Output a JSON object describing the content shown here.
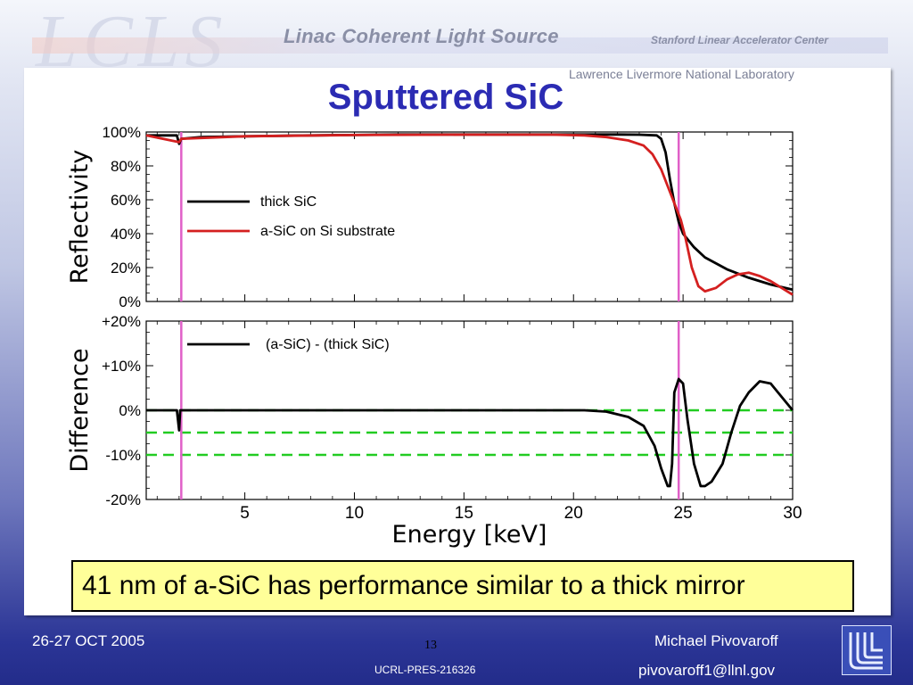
{
  "header": {
    "logo_text": "LCLS",
    "organization": "Linac Coherent Light Source",
    "center": "Stanford Linear Accelerator Center",
    "lab": "Lawrence Livermore National Laboratory"
  },
  "slide": {
    "title": "Sputtered SiC",
    "callout": "41 nm of a-SiC has performance similar to a thick mirror"
  },
  "footer": {
    "date": "26-27 OCT 2005",
    "page_number": "13",
    "report_id": "UCRL-PRES-216326",
    "author": "Michael Pivovaroff",
    "email": "pivovaroff1@llnl.gov"
  },
  "colors": {
    "title": "#2b2bb3",
    "thick_line": "#000000",
    "asic_line": "#d42020",
    "marker_lines": "#e060c8",
    "reference_dashes": "#22cc22",
    "callout_bg": "#ffff99"
  },
  "chart_data": [
    {
      "type": "line",
      "ylabel": "Reflectivity",
      "xlim": [
        0.5,
        30
      ],
      "ylim": [
        0,
        100
      ],
      "yticks": [
        "0%",
        "20%",
        "40%",
        "60%",
        "80%",
        "100%"
      ],
      "legend_placement": "center-left",
      "vertical_markers": [
        2.1,
        24.8
      ],
      "series": [
        {
          "name": "thick SiC",
          "color": "#000000",
          "points": [
            [
              0.5,
              98
            ],
            [
              1.9,
              98
            ],
            [
              2.0,
              93
            ],
            [
              2.1,
              96
            ],
            [
              3,
              97
            ],
            [
              5,
              97.5
            ],
            [
              8,
              98
            ],
            [
              12,
              98.5
            ],
            [
              16,
              98.5
            ],
            [
              20,
              98.5
            ],
            [
              22,
              98.5
            ],
            [
              23,
              98.4
            ],
            [
              23.8,
              98
            ],
            [
              24.0,
              96
            ],
            [
              24.2,
              88
            ],
            [
              24.4,
              72
            ],
            [
              24.6,
              58
            ],
            [
              24.8,
              47
            ],
            [
              25.0,
              40
            ],
            [
              25.5,
              32
            ],
            [
              26,
              26
            ],
            [
              27,
              19
            ],
            [
              28,
              14
            ],
            [
              29,
              10
            ],
            [
              30,
              7
            ]
          ]
        },
        {
          "name": "a-SiC on Si substrate",
          "color": "#d42020",
          "points": [
            [
              0.5,
              98
            ],
            [
              2.0,
              94
            ],
            [
              2.1,
              96
            ],
            [
              5,
              97.5
            ],
            [
              10,
              98.2
            ],
            [
              15,
              98.4
            ],
            [
              19,
              98.4
            ],
            [
              20.5,
              98
            ],
            [
              21.5,
              97
            ],
            [
              22.5,
              95
            ],
            [
              23.2,
              92
            ],
            [
              23.6,
              87
            ],
            [
              24.0,
              78
            ],
            [
              24.3,
              68
            ],
            [
              24.6,
              58
            ],
            [
              24.9,
              48
            ],
            [
              25.1,
              38
            ],
            [
              25.4,
              20
            ],
            [
              25.7,
              9
            ],
            [
              26.0,
              6
            ],
            [
              26.5,
              8
            ],
            [
              27.0,
              13
            ],
            [
              27.5,
              16
            ],
            [
              28.0,
              17
            ],
            [
              28.5,
              15
            ],
            [
              29.0,
              12
            ],
            [
              29.5,
              8
            ],
            [
              30,
              4
            ]
          ]
        }
      ]
    },
    {
      "type": "line",
      "xlabel": "Energy [keV]",
      "ylabel": "Difference",
      "xlim": [
        0.5,
        30
      ],
      "ylim": [
        -20,
        20
      ],
      "xticks": [
        5,
        10,
        15,
        20,
        25,
        30
      ],
      "yticks": [
        "-20%",
        "-10%",
        "0%",
        "+10%",
        "+20%"
      ],
      "legend_placement": "top-left",
      "vertical_markers": [
        2.1,
        24.8
      ],
      "reference_lines": [
        0,
        -5,
        -10
      ],
      "series": [
        {
          "name": "(a-SiC) - (thick SiC)",
          "color": "#000000",
          "points": [
            [
              0.5,
              0
            ],
            [
              1.9,
              0
            ],
            [
              2.0,
              -4.5
            ],
            [
              2.05,
              0
            ],
            [
              5,
              0
            ],
            [
              10,
              0
            ],
            [
              15,
              0
            ],
            [
              20.5,
              0
            ],
            [
              21.5,
              -0.3
            ],
            [
              22.5,
              -1.5
            ],
            [
              23.2,
              -3.5
            ],
            [
              23.7,
              -8
            ],
            [
              24.0,
              -13
            ],
            [
              24.3,
              -17
            ],
            [
              24.4,
              -17
            ],
            [
              24.5,
              -12
            ],
            [
              24.6,
              4
            ],
            [
              24.8,
              7
            ],
            [
              25.0,
              6
            ],
            [
              25.2,
              -2
            ],
            [
              25.5,
              -12
            ],
            [
              25.8,
              -17
            ],
            [
              26.0,
              -17
            ],
            [
              26.3,
              -16
            ],
            [
              26.8,
              -12
            ],
            [
              27.2,
              -5
            ],
            [
              27.6,
              1
            ],
            [
              28.0,
              4
            ],
            [
              28.5,
              6.5
            ],
            [
              29.0,
              6
            ],
            [
              29.5,
              3
            ],
            [
              30,
              0
            ]
          ]
        }
      ]
    }
  ]
}
